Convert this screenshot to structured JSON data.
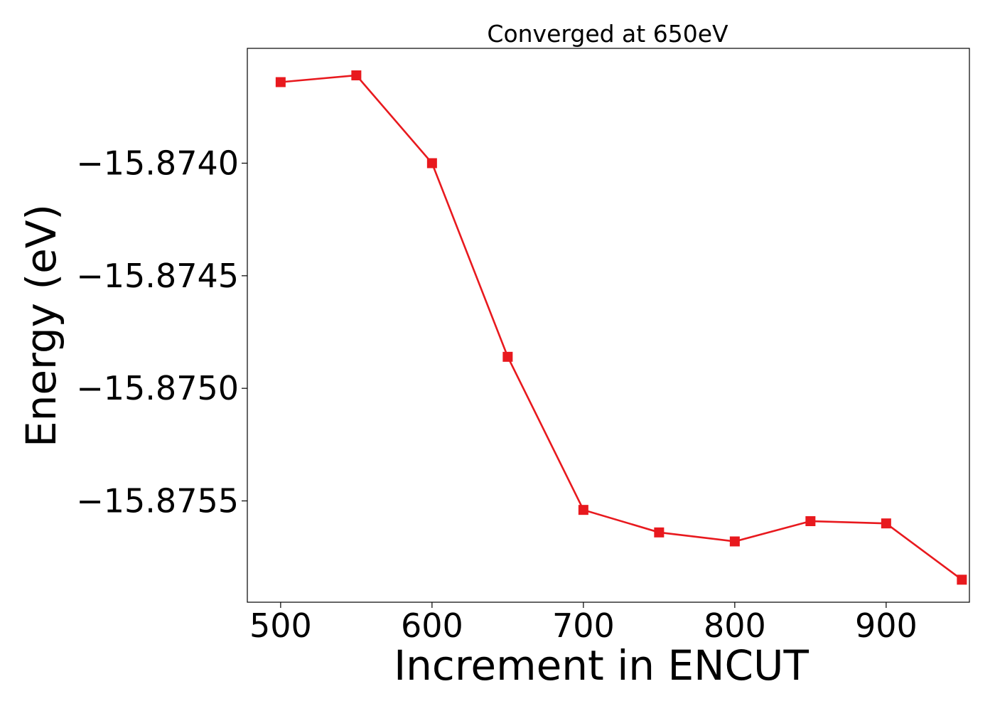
{
  "chart_data": {
    "type": "line",
    "title": "Converged at 650eV",
    "xlabel": "Increment in ENCUT",
    "ylabel": "Energy (eV)",
    "x": [
      500,
      550,
      600,
      650,
      700,
      750,
      800,
      850,
      900,
      950
    ],
    "series": [
      {
        "values": [
          -15.87364,
          -15.87361,
          -15.874,
          -15.87486,
          -15.87554,
          -15.87564,
          -15.87568,
          -15.87559,
          -15.8756,
          -15.87585
        ]
      }
    ],
    "xlim": [
      478,
      955
    ],
    "ylim": [
      -15.87595,
      -15.87349
    ],
    "xticks": [
      500,
      600,
      700,
      800,
      900
    ],
    "xtick_labels": [
      "500",
      "600",
      "700",
      "800",
      "900"
    ],
    "yticks": [
      -15.874,
      -15.8745,
      -15.875,
      -15.8755
    ],
    "ytick_labels": [
      "−15.8740",
      "−15.8745",
      "−15.8750",
      "−15.8755"
    ],
    "grid": false,
    "marker": "square",
    "line_color": "#e8191e"
  }
}
